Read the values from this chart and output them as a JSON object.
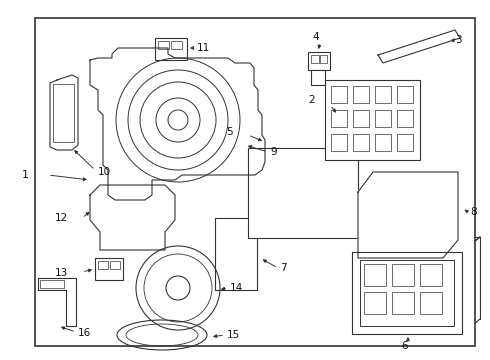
{
  "bg_color": "#ffffff",
  "border_color": "#444444",
  "line_color": "#333333",
  "label_color": "#111111",
  "fig_width": 4.9,
  "fig_height": 3.6,
  "dpi": 100
}
